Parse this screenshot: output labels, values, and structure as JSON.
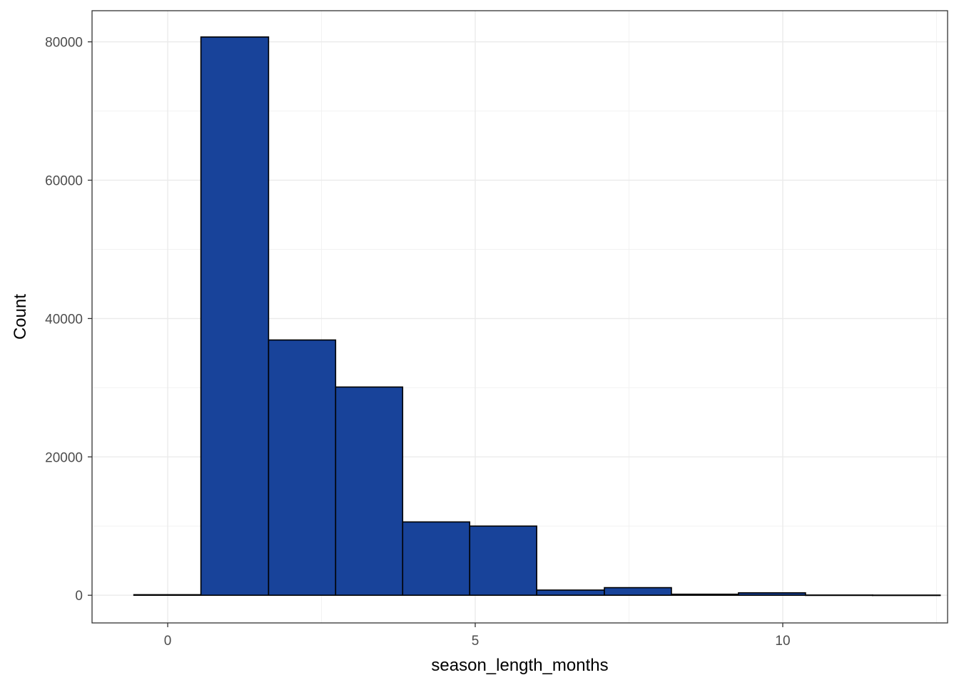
{
  "chart_data": {
    "type": "bar",
    "subtype": "histogram",
    "xlabel": "season_length_months",
    "ylabel": "Count",
    "xlim": [
      -1.23,
      12.68
    ],
    "ylim": [
      -4000,
      84500
    ],
    "x_ticks": [
      0,
      5,
      10
    ],
    "y_ticks": [
      0,
      20000,
      40000,
      60000,
      80000
    ],
    "x_tick_labels": [
      "0",
      "5",
      "10"
    ],
    "y_tick_labels": [
      "0",
      "20000",
      "40000",
      "60000",
      "80000"
    ],
    "grid": true,
    "legend": "none",
    "bar_fill": "#18439a",
    "bar_outline": "#000000",
    "bins": [
      {
        "x0": -0.55,
        "x1": 0.54,
        "count": 80
      },
      {
        "x0": 0.54,
        "x1": 1.64,
        "count": 80700
      },
      {
        "x0": 1.64,
        "x1": 2.73,
        "count": 36900
      },
      {
        "x0": 2.73,
        "x1": 3.82,
        "count": 30100
      },
      {
        "x0": 3.82,
        "x1": 4.91,
        "count": 10600
      },
      {
        "x0": 4.91,
        "x1": 6.0,
        "count": 10000
      },
      {
        "x0": 6.0,
        "x1": 7.1,
        "count": 750
      },
      {
        "x0": 7.1,
        "x1": 8.19,
        "count": 1100
      },
      {
        "x0": 8.19,
        "x1": 9.28,
        "count": 150
      },
      {
        "x0": 9.28,
        "x1": 10.37,
        "count": 350
      },
      {
        "x0": 10.37,
        "x1": 11.46,
        "count": 30
      },
      {
        "x0": 11.46,
        "x1": 12.56,
        "count": 20
      }
    ]
  }
}
